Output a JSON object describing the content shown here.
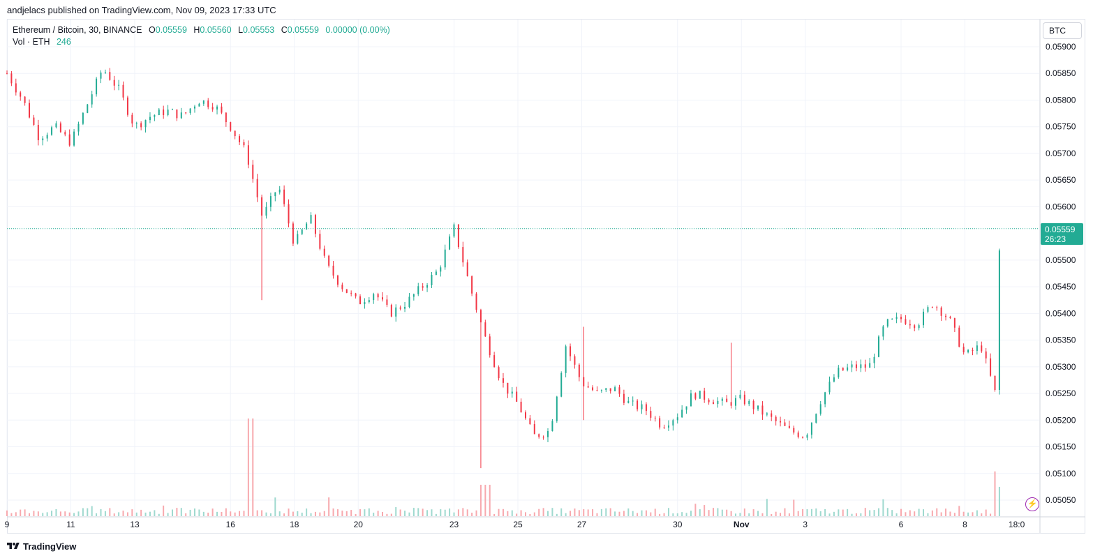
{
  "header": {
    "published": "andjelacs published on TradingView.com, Nov 09, 2023 17:33 UTC"
  },
  "legend": {
    "symbol": "Ethereum / Bitcoin, 30, BINANCE",
    "o_label": "O",
    "o": "0.05559",
    "h_label": "H",
    "h": "0.05560",
    "l_label": "L",
    "l": "0.05553",
    "c_label": "C",
    "c": "0.05559",
    "change": "0.00000 (0.00%)",
    "vol_label": "Vol · ETH",
    "vol": "246"
  },
  "axis": {
    "currency": "BTC"
  },
  "last_price": {
    "price": "0.05559",
    "countdown": "26:23"
  },
  "footer": {
    "brand": "TradingView"
  },
  "colors": {
    "up": "#22ab94",
    "down": "#f23645",
    "grid": "#f0f3fa",
    "text": "#131722"
  },
  "chart_data": {
    "type": "candlestick",
    "symbol": "Ethereum / Bitcoin, 30, BINANCE",
    "yaxis": {
      "ticks": [
        "0.05900",
        "0.05850",
        "0.05800",
        "0.05750",
        "0.05700",
        "0.05650",
        "0.05600",
        "0.05500",
        "0.05450",
        "0.05400",
        "0.05350",
        "0.05300",
        "0.05250",
        "0.05200",
        "0.05150",
        "0.05100",
        "0.05050"
      ],
      "range": [
        0.0502,
        0.0592
      ]
    },
    "xaxis": {
      "ticks": [
        "9",
        "11",
        "13",
        "16",
        "18",
        "20",
        "23",
        "25",
        "27",
        "30",
        "Nov",
        "3",
        "6",
        "8",
        "18:0"
      ],
      "range_days": [
        "2023-10-09",
        "2023-11-09"
      ]
    },
    "price_path": [
      {
        "d": "Oct 09",
        "p": 0.0585
      },
      {
        "d": "Oct 09 12h",
        "p": 0.058
      },
      {
        "d": "Oct 10",
        "p": 0.0573
      },
      {
        "d": "Oct 10 12h",
        "p": 0.0575
      },
      {
        "d": "Oct 11",
        "p": 0.0572
      },
      {
        "d": "Oct 11 12h",
        "p": 0.0579
      },
      {
        "d": "Oct 12",
        "p": 0.0586
      },
      {
        "d": "Oct 12 12h",
        "p": 0.0582
      },
      {
        "d": "Oct 13",
        "p": 0.0575
      },
      {
        "d": "Oct 13 12h",
        "p": 0.0577
      },
      {
        "d": "Oct 14",
        "p": 0.0578
      },
      {
        "d": "Oct 14 12h",
        "p": 0.0577
      },
      {
        "d": "Oct 15",
        "p": 0.058
      },
      {
        "d": "Oct 15 12h",
        "p": 0.0579
      },
      {
        "d": "Oct 16",
        "p": 0.0575
      },
      {
        "d": "Oct 16 12h",
        "p": 0.057
      },
      {
        "d": "Oct 17",
        "p": 0.0558
      },
      {
        "d": "Oct 17 12h",
        "p": 0.0564
      },
      {
        "d": "Oct 18",
        "p": 0.0553
      },
      {
        "d": "Oct 18 12h",
        "p": 0.0558
      },
      {
        "d": "Oct 19",
        "p": 0.0549
      },
      {
        "d": "Oct 19 12h",
        "p": 0.0545
      },
      {
        "d": "Oct 20",
        "p": 0.0542
      },
      {
        "d": "Oct 20 12h",
        "p": 0.0544
      },
      {
        "d": "Oct 21",
        "p": 0.054
      },
      {
        "d": "Oct 21 12h",
        "p": 0.0542
      },
      {
        "d": "Oct 22",
        "p": 0.0545
      },
      {
        "d": "Oct 22 12h",
        "p": 0.0548
      },
      {
        "d": "Oct 23",
        "p": 0.0556
      },
      {
        "d": "Oct 23 12h",
        "p": 0.0545
      },
      {
        "d": "Oct 24",
        "p": 0.0535
      },
      {
        "d": "Oct 24 12h",
        "p": 0.0527
      },
      {
        "d": "Oct 25",
        "p": 0.0523
      },
      {
        "d": "Oct 25 12h",
        "p": 0.0517
      },
      {
        "d": "Oct 26",
        "p": 0.0518
      },
      {
        "d": "Oct 26 12h",
        "p": 0.0534
      },
      {
        "d": "Oct 27",
        "p": 0.0527
      },
      {
        "d": "Oct 27 12h",
        "p": 0.0525
      },
      {
        "d": "Oct 28",
        "p": 0.0526
      },
      {
        "d": "Oct 28 12h",
        "p": 0.0523
      },
      {
        "d": "Oct 29",
        "p": 0.0522
      },
      {
        "d": "Oct 29 12h",
        "p": 0.0519
      },
      {
        "d": "Oct 30",
        "p": 0.0521
      },
      {
        "d": "Oct 30 12h",
        "p": 0.0525
      },
      {
        "d": "Oct 31",
        "p": 0.0524
      },
      {
        "d": "Oct 31 12h",
        "p": 0.0523
      },
      {
        "d": "Nov 01",
        "p": 0.0524
      },
      {
        "d": "Nov 01 12h",
        "p": 0.0522
      },
      {
        "d": "Nov 02",
        "p": 0.052
      },
      {
        "d": "Nov 02 12h",
        "p": 0.0518
      },
      {
        "d": "Nov 03",
        "p": 0.0517
      },
      {
        "d": "Nov 03 12h",
        "p": 0.0524
      },
      {
        "d": "Nov 04",
        "p": 0.0529
      },
      {
        "d": "Nov 04 12h",
        "p": 0.053
      },
      {
        "d": "Nov 05",
        "p": 0.053
      },
      {
        "d": "Nov 05 12h",
        "p": 0.0538
      },
      {
        "d": "Nov 06",
        "p": 0.0539
      },
      {
        "d": "Nov 06 12h",
        "p": 0.0538
      },
      {
        "d": "Nov 07",
        "p": 0.0542
      },
      {
        "d": "Nov 07 12h",
        "p": 0.0539
      },
      {
        "d": "Nov 08",
        "p": 0.0532
      },
      {
        "d": "Nov 08 12h",
        "p": 0.0534
      },
      {
        "d": "Nov 09",
        "p": 0.0524
      },
      {
        "d": "Nov 09 06h",
        "p": 0.0515
      },
      {
        "d": "Nov 09 12h",
        "p": 0.054
      },
      {
        "d": "Nov 09 17h",
        "p": 0.05559
      }
    ],
    "last_price": 0.05559
  }
}
